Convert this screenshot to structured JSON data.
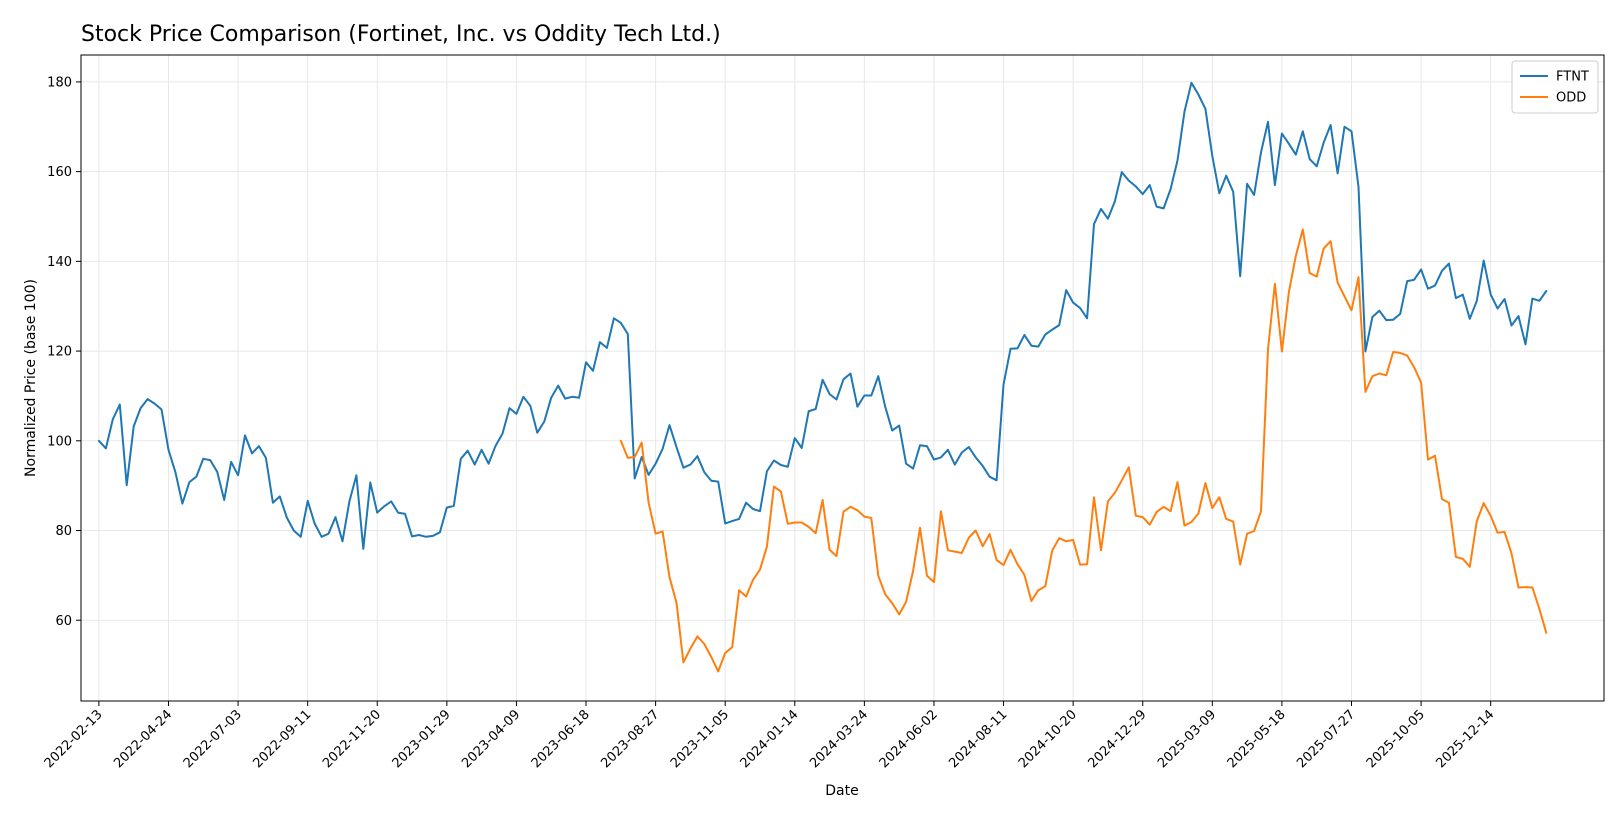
{
  "chart_data": {
    "type": "line",
    "title": "Stock Price Comparison (Fortinet, Inc. vs Oddity Tech Ltd.)",
    "xlabel": "Date",
    "ylabel": "Normalized Price (base 100)",
    "ylim": [
      42,
      186
    ],
    "y_ticks": [
      60,
      80,
      100,
      120,
      140,
      160,
      180
    ],
    "x_range": [
      "2022-01-26",
      "2026-04-07"
    ],
    "x_ticks": [
      "2022-02-13",
      "2022-04-24",
      "2022-07-03",
      "2022-09-11",
      "2022-11-20",
      "2023-01-29",
      "2023-04-09",
      "2023-06-18",
      "2023-08-27",
      "2023-11-05",
      "2024-01-14",
      "2024-03-24",
      "2024-06-02",
      "2024-08-11",
      "2024-10-20",
      "2024-12-29",
      "2025-03-09",
      "2025-05-18",
      "2025-07-27",
      "2025-10-05",
      "2025-12-14"
    ],
    "grid": true,
    "legend": "top-right",
    "series": [
      {
        "name": "FTNT",
        "color": "#1f77b4",
        "start": "2022-02-13",
        "step_days": 7,
        "values": [
          100,
          98.3,
          104.8,
          108.1,
          90.1,
          103.2,
          107.3,
          109.3,
          108.3,
          107,
          98,
          93,
          86,
          90.8,
          92,
          96,
          95.7,
          93.1,
          86.8,
          95.3,
          92.3,
          101.2,
          97.2,
          98.8,
          96.2,
          86.2,
          87.6,
          82.9,
          80,
          78.6,
          86.6,
          81.6,
          78.6,
          79.3,
          83,
          77.6,
          86.5,
          92.3,
          75.9,
          90.7,
          84,
          85.4,
          86.5,
          84,
          83.7,
          78.7,
          79,
          78.6,
          78.8,
          79.6,
          85.1,
          85.5,
          96,
          97.8,
          94.7,
          98,
          94.9,
          98.9,
          101.6,
          107.3,
          106,
          109.8,
          107.8,
          101.8,
          104.3,
          109.6,
          112.3,
          109.4,
          109.8,
          109.6,
          117.5,
          115.6,
          122,
          120.7,
          127.3,
          126.3,
          123.8,
          91.6,
          96.4,
          92.4,
          94.9,
          98.2,
          103.5,
          98.6,
          94,
          94.7,
          96.6,
          93,
          91.1,
          90.9,
          81.6,
          82.1,
          82.6,
          86.2,
          84.8,
          84.3,
          93.2,
          95.6,
          94.6,
          94.2,
          100.6,
          98.4,
          106.6,
          107.1,
          113.6,
          110.4,
          109.2,
          113.7,
          115,
          107.6,
          110.1,
          110.1,
          114.4,
          107.6,
          102.3,
          103.4,
          94.9,
          93.8,
          99,
          98.8,
          95.8,
          96.3,
          98,
          94.7,
          97.4,
          98.6,
          96.3,
          94.4,
          92,
          91.2,
          112.5,
          120.5,
          120.6,
          123.6,
          121.2,
          121,
          123.7,
          124.8,
          125.8,
          133.6,
          130.8,
          129.6,
          127.3,
          148.3,
          151.7,
          149.5,
          153.4,
          159.9,
          158,
          156.7,
          155,
          157,
          152.2,
          151.8,
          156.1,
          162.5,
          173.4,
          179.8,
          177.2,
          174,
          163.5,
          155.2,
          159.1,
          155.5,
          136.7,
          157.3,
          154.8,
          164.3,
          171.1,
          157,
          168.5,
          166.2,
          163.8,
          169,
          162.8,
          161.2,
          166.5,
          170.4,
          159.6,
          170,
          169,
          156.6,
          119.9,
          127.6,
          129,
          126.9,
          127,
          128.3,
          135.6,
          135.9,
          138.2,
          133.9,
          134.6,
          137.9,
          139.5,
          131.8,
          132.6,
          127.2,
          131.2,
          140.2,
          132.6,
          129.5,
          131.6,
          125.7,
          127.8,
          121.5,
          131.7,
          131.2,
          133.4
        ]
      },
      {
        "name": "ODD",
        "color": "#ff7f0e",
        "start": "2023-07-23",
        "step_days": 7,
        "values": [
          100,
          96.2,
          96.4,
          99.6,
          86.2,
          79.3,
          79.8,
          69.6,
          63.9,
          50.6,
          53.7,
          56.4,
          54.7,
          51.8,
          48.6,
          52.7,
          54,
          66.7,
          65.3,
          69,
          71.3,
          76.4,
          89.8,
          88.7,
          81.5,
          81.8,
          81.8,
          80.8,
          79.4,
          86.8,
          75.7,
          74.3,
          84.2,
          85.3,
          84.5,
          83.1,
          82.8,
          69.9,
          65.8,
          63.8,
          61.3,
          64.1,
          71,
          80.6,
          69.9,
          68.5,
          84.3,
          75.6,
          75.3,
          75,
          78.4,
          80,
          76.5,
          79.2,
          73.4,
          72.3,
          75.7,
          72.5,
          70.1,
          64.3,
          66.7,
          67.6,
          75.6,
          78.3,
          77.6,
          77.9,
          72.4,
          72.5,
          87.4,
          75.6,
          86.5,
          88.4,
          91.2,
          94.1,
          83.3,
          83,
          81.3,
          84.1,
          85.3,
          84.3,
          90.8,
          81.1,
          81.9,
          83.8,
          90.6,
          85,
          87.4,
          82.6,
          82,
          72.4,
          79.3,
          79.9,
          84.3,
          120.4,
          135,
          119.9,
          133.2,
          141.2,
          147.1,
          137.4,
          136.6,
          142.9,
          144.5,
          135.3,
          132.2,
          129.1,
          136.5,
          110.9,
          114.4,
          115,
          114.6,
          119.8,
          119.6,
          119,
          116.4,
          113,
          95.8,
          96.7,
          87,
          86.2,
          74.1,
          73.7,
          71.9,
          82.1,
          86.1,
          83.3,
          79.5,
          79.7,
          74.9,
          67.3,
          67.4,
          67.3,
          62.5,
          57.2
        ]
      }
    ]
  }
}
